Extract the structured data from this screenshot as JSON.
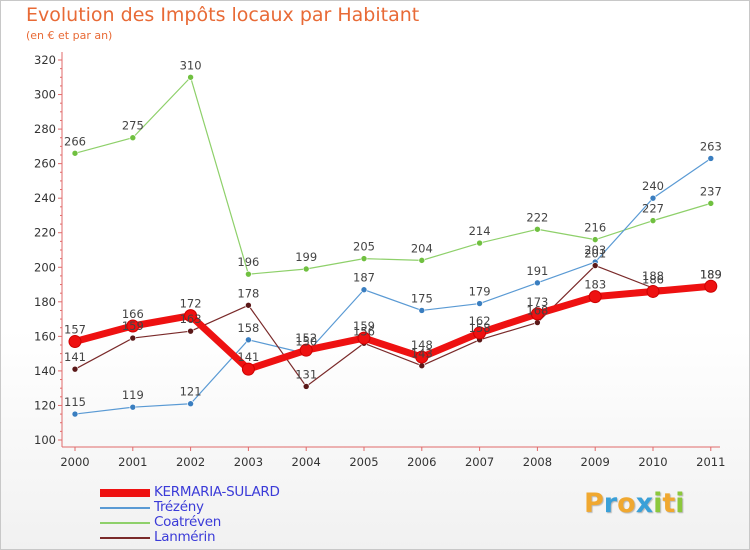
{
  "title": "Evolution des Impôts locaux par Habitant",
  "subtitle": "(en € et par an)",
  "brand": {
    "letters": [
      "P",
      "r",
      "o",
      "x",
      "i",
      "t",
      "i"
    ],
    "colors": [
      "#f0a830",
      "#3aa0d8",
      "#f0a830",
      "#3aa0d8",
      "#8cc83c",
      "#f0a830",
      "#8cc83c"
    ]
  },
  "chart_data": {
    "type": "line",
    "x": [
      "2000",
      "2001",
      "2002",
      "2003",
      "2004",
      "2005",
      "2006",
      "2007",
      "2008",
      "2009",
      "2010",
      "2011"
    ],
    "ylim": [
      100,
      320
    ],
    "yticks": [
      "100",
      "120",
      "140",
      "160",
      "180",
      "200",
      "220",
      "240",
      "260",
      "280",
      "300",
      "320"
    ],
    "grid": false,
    "legend": "bottom-left",
    "series": [
      {
        "name": "KERMARIA-SULARD",
        "color": "#ee1111",
        "values": [
          157,
          166,
          172,
          141,
          152,
          159,
          148,
          162,
          173,
          183,
          186,
          189
        ]
      },
      {
        "name": "Trézény",
        "color": "#5a9ad4",
        "values": [
          115,
          119,
          121,
          158,
          150,
          187,
          175,
          179,
          191,
          203,
          240,
          263
        ]
      },
      {
        "name": "Coatréven",
        "color": "#8ed06a",
        "values": [
          266,
          275,
          310,
          196,
          199,
          205,
          204,
          214,
          222,
          216,
          227,
          237
        ]
      },
      {
        "name": "Lanmérin",
        "color": "#7a2a2a",
        "values": [
          141,
          159,
          163,
          178,
          131,
          156,
          143,
          158,
          168,
          201,
          188,
          189
        ]
      }
    ]
  }
}
